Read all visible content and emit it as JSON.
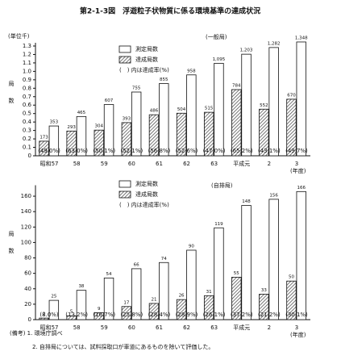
{
  "title": "第2-1-3図　浮遊粒子状物質に係る環境基準の達成状況",
  "chart_data": [
    {
      "type": "bar",
      "y_unit": "(単位千)",
      "ylabel": "局数",
      "annotation": "(一般局)",
      "rate_note": "(　) 内は達成率(%)",
      "x_unit": "(年度)",
      "categories": [
        "昭和57",
        "58",
        "59",
        "60",
        "61",
        "62",
        "63",
        "平成元",
        "2",
        "3"
      ],
      "series": [
        {
          "name": "測定局数",
          "color": "#ffffff",
          "values": [
            0.353,
            0.465,
            0.607,
            0.755,
            0.855,
            0.958,
            1.095,
            1.203,
            1.282,
            1.348
          ],
          "value_labels": [
            "353",
            "465",
            "607",
            "755",
            "855",
            "958",
            "1,095",
            "1,203",
            "1,282",
            "1,348"
          ]
        },
        {
          "name": "達成局数",
          "color": "#555555",
          "pattern": "hatch",
          "values": [
            0.173,
            0.293,
            0.304,
            0.393,
            0.486,
            0.504,
            0.515,
            0.784,
            0.552,
            0.67
          ],
          "value_labels": [
            "173",
            "293",
            "304",
            "393",
            "486",
            "504",
            "515",
            "784",
            "552",
            "670"
          ]
        }
      ],
      "rates": [
        49.0,
        63.0,
        50.1,
        52.1,
        56.8,
        52.6,
        47.0,
        65.2,
        43.1,
        49.7
      ],
      "rate_labels": [
        "(49.0%)",
        "(63.0%)",
        "(50.1%)",
        "(52.1%)",
        "(56.8%)",
        "(52.6%)",
        "(47.0%)",
        "(65.2%)",
        "(43.1%)",
        "(49.7%)"
      ],
      "ylim": [
        0,
        1.3
      ],
      "yticks": [
        0,
        0.1,
        0.2,
        0.3,
        0.4,
        0.5,
        0.6,
        0.7,
        0.8,
        0.9,
        {
          "value": 1,
          "label": "1.0"
        },
        1.1,
        1.2,
        1.3
      ]
    },
    {
      "type": "bar",
      "ylabel": "局数",
      "annotation": "(自排局)",
      "rate_note": "(　) 内は達成率(%)",
      "x_unit": "(年度)",
      "categories": [
        "昭和57",
        "58",
        "59",
        "60",
        "61",
        "62",
        "63",
        "平成元",
        "2",
        "3"
      ],
      "series": [
        {
          "name": "測定局数",
          "color": "#ffffff",
          "values": [
            25,
            38,
            54,
            66,
            74,
            90,
            119,
            148,
            156,
            166
          ]
        },
        {
          "name": "達成局数",
          "color": "#555555",
          "pattern": "hatch",
          "values": [
            2,
            5,
            9,
            17,
            21,
            26,
            31,
            55,
            33,
            50
          ]
        }
      ],
      "rates": [
        8.0,
        13.2,
        16.7,
        25.8,
        28.4,
        28.9,
        26.1,
        37.2,
        21.2,
        30.1
      ],
      "rate_labels": [
        "(8.0%)",
        "(13.2%)",
        "(16.7%)",
        "(25.8%)",
        "(28.4%)",
        "(28.9%)",
        "(26.1%)",
        "(37.2%)",
        "(21.2%)",
        "(30.1%)"
      ],
      "ylim": [
        0,
        170
      ],
      "yticks": [
        0,
        20,
        40,
        60,
        80,
        100,
        120,
        140,
        160
      ]
    }
  ],
  "notes": [
    "(備考) 1. 環境庁調べ",
    "2. 自排局については、試料採取口が車道にあるものを除いて評価した。"
  ]
}
